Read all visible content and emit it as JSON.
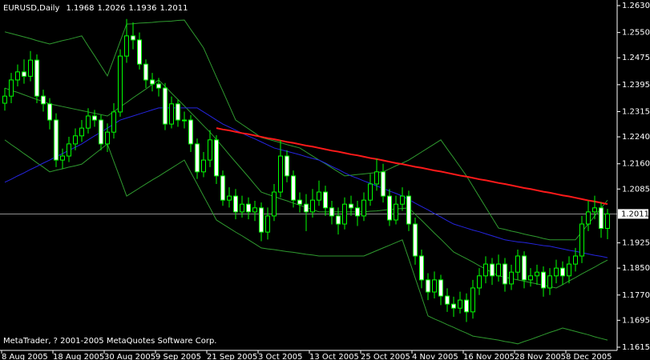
{
  "chart_data": {
    "type": "candlestick",
    "title": "EURUSD,Daily",
    "annotation": "MetaTrader, ? 2001-2005 MetaQuotes Software Corp.",
    "categories": [
      "8 Aug 2005",
      null,
      null,
      null,
      null,
      null,
      null,
      null,
      "18 Aug 2005",
      null,
      null,
      null,
      null,
      null,
      null,
      null,
      "30 Aug 2005",
      null,
      null,
      null,
      null,
      null,
      null,
      null,
      "9 Sep 2005",
      null,
      null,
      null,
      null,
      null,
      null,
      null,
      "21 Sep 2005",
      null,
      null,
      null,
      null,
      null,
      null,
      null,
      "3 Oct 2005",
      null,
      null,
      null,
      null,
      null,
      null,
      null,
      "13 Oct 2005",
      null,
      null,
      null,
      null,
      null,
      null,
      null,
      "25 Oct 2005",
      null,
      null,
      null,
      null,
      null,
      null,
      null,
      "4 Nov 2005",
      null,
      null,
      null,
      null,
      null,
      null,
      null,
      "16 Nov 2005",
      null,
      null,
      null,
      null,
      null,
      null,
      null,
      "28 Nov 2005",
      null,
      null,
      null,
      null,
      null,
      null,
      null,
      "8 Dec 2005",
      null,
      null,
      null,
      null,
      null,
      null
    ],
    "candles": {
      "open": [
        1.234,
        1.2361,
        1.2409,
        1.2433,
        1.242,
        1.2468,
        1.2361,
        1.2338,
        1.229,
        1.2171,
        1.2183,
        1.2219,
        1.2243,
        1.2266,
        1.2302,
        1.229,
        1.2219,
        1.2254,
        1.2314,
        1.248,
        1.254,
        1.2528,
        1.2456,
        1.2409,
        1.2397,
        1.2385,
        1.2278,
        1.2338,
        1.229,
        1.229,
        1.2219,
        1.2136,
        1.2171,
        1.2231,
        1.2124,
        1.2052,
        1.2064,
        1.2017,
        1.204,
        1.2017,
        1.2029,
        1.1957,
        1.2005,
        1.2076,
        1.2183,
        1.2124,
        1.2052,
        1.204,
        1.2017,
        1.2052,
        1.2076,
        1.2029,
        1.2005,
        1.1981,
        1.204,
        1.2029,
        1.2005,
        1.2052,
        1.21,
        1.2136,
        1.2064,
        1.1993,
        1.204,
        1.2064,
        1.1981,
        1.1886,
        1.1815,
        1.1779,
        1.1815,
        1.1767,
        1.1743,
        1.1731,
        1.1755,
        1.172,
        1.1791,
        1.1827,
        1.1862,
        1.1827,
        1.1862,
        1.1803,
        1.1838,
        1.1886,
        1.1815,
        1.1827,
        1.1838,
        1.1791,
        1.1827,
        1.185,
        1.1827,
        1.1862,
        1.1886,
        1.1981,
        1.2017,
        1.2029,
        1.1968
      ],
      "high": [
        1.2385,
        1.243,
        1.2455,
        1.247,
        1.2495,
        1.2485,
        1.238,
        1.2355,
        1.231,
        1.2205,
        1.224,
        1.2265,
        1.229,
        1.2325,
        1.232,
        1.2305,
        1.228,
        1.234,
        1.25,
        1.259,
        1.258,
        1.255,
        1.247,
        1.243,
        1.2415,
        1.24,
        1.236,
        1.235,
        1.2315,
        1.2305,
        1.2235,
        1.2195,
        1.226,
        1.2245,
        1.214,
        1.209,
        1.2085,
        1.2065,
        1.206,
        1.205,
        1.2045,
        1.203,
        1.21,
        1.223,
        1.22,
        1.214,
        1.2075,
        1.207,
        1.2085,
        1.211,
        1.2095,
        1.205,
        1.203,
        1.206,
        1.2065,
        1.205,
        1.2075,
        1.213,
        1.2175,
        1.216,
        1.2085,
        1.2065,
        1.209,
        1.208,
        1.2,
        1.1905,
        1.1835,
        1.184,
        1.183,
        1.179,
        1.1765,
        1.178,
        1.1775,
        1.1815,
        1.185,
        1.1885,
        1.188,
        1.189,
        1.188,
        1.186,
        1.1905,
        1.19,
        1.185,
        1.186,
        1.1855,
        1.185,
        1.1875,
        1.187,
        1.1885,
        1.191,
        1.2005,
        1.205,
        1.2065,
        1.2045,
        1.2026
      ],
      "low": [
        1.2318,
        1.234,
        1.239,
        1.2398,
        1.2405,
        1.234,
        1.2315,
        1.2262,
        1.215,
        1.2145,
        1.2165,
        1.22,
        1.2225,
        1.225,
        1.227,
        1.22,
        1.2195,
        1.2235,
        1.23,
        1.246,
        1.25,
        1.244,
        1.2385,
        1.2375,
        1.236,
        1.226,
        1.2265,
        1.227,
        1.2265,
        1.2195,
        1.2115,
        1.212,
        1.215,
        1.21,
        1.2035,
        1.203,
        1.1995,
        1.2,
        1.1995,
        1.199,
        1.193,
        1.1935,
        1.199,
        1.206,
        1.2105,
        1.203,
        1.2015,
        1.196,
        1.2,
        1.2035,
        1.2005,
        1.198,
        1.195,
        1.1965,
        1.2005,
        1.1975,
        1.199,
        1.2035,
        1.208,
        1.2045,
        1.1975,
        1.198,
        1.202,
        1.196,
        1.186,
        1.179,
        1.1755,
        1.176,
        1.174,
        1.172,
        1.1705,
        1.1715,
        1.169,
        1.17,
        1.177,
        1.1805,
        1.18,
        1.181,
        1.178,
        1.1785,
        1.1815,
        1.179,
        1.1795,
        1.18,
        1.1765,
        1.177,
        1.1805,
        1.18,
        1.1805,
        1.184,
        1.1865,
        1.196,
        1.1995,
        1.194,
        1.1936
      ],
      "close": [
        1.2361,
        1.2409,
        1.2433,
        1.242,
        1.2468,
        1.2361,
        1.2338,
        1.229,
        1.2171,
        1.2183,
        1.2219,
        1.2243,
        1.2266,
        1.2302,
        1.229,
        1.2219,
        1.2254,
        1.2314,
        1.248,
        1.254,
        1.2528,
        1.2456,
        1.2409,
        1.2397,
        1.2385,
        1.2278,
        1.2338,
        1.229,
        1.229,
        1.2219,
        1.2136,
        1.2171,
        1.2231,
        1.2124,
        1.2052,
        1.2064,
        1.2017,
        1.204,
        1.2017,
        1.2029,
        1.1957,
        1.2005,
        1.2076,
        1.2183,
        1.2124,
        1.2052,
        1.204,
        1.2017,
        1.2052,
        1.2076,
        1.2029,
        1.2005,
        1.1981,
        1.204,
        1.2029,
        1.2005,
        1.2052,
        1.21,
        1.2136,
        1.2064,
        1.1993,
        1.204,
        1.2064,
        1.1981,
        1.1886,
        1.1815,
        1.1779,
        1.1815,
        1.1767,
        1.1743,
        1.1731,
        1.1755,
        1.172,
        1.1791,
        1.1827,
        1.1862,
        1.1827,
        1.1862,
        1.1803,
        1.1838,
        1.1886,
        1.1815,
        1.1827,
        1.1838,
        1.1791,
        1.1827,
        1.185,
        1.1827,
        1.1862,
        1.1886,
        1.1981,
        1.2017,
        1.2029,
        1.1968,
        1.2011
      ],
      "wick_color": "#00ff00",
      "bull_fill": "#000000",
      "bear_fill": "#ffffff"
    },
    "lines": [
      {
        "color": "#2f9a2f",
        "width": 1,
        "values": [
          1.2552,
          1.2547,
          1.2542,
          1.2537,
          1.2532,
          1.2526,
          1.2521,
          1.2516,
          1.2521,
          1.2526,
          1.253,
          1.2535,
          1.254,
          1.251,
          1.2481,
          1.2451,
          1.2421,
          1.2472,
          1.2524,
          1.2575,
          1.2576,
          1.2578,
          1.2579,
          1.258,
          1.2582,
          1.2583,
          1.2584,
          1.2586,
          1.2587,
          1.2559,
          1.2532,
          1.2504,
          1.2461,
          1.2418,
          1.2376,
          1.2333,
          1.229,
          1.2277,
          1.2264,
          1.2251,
          1.2238,
          1.2233,
          1.2228,
          1.2223,
          1.2217,
          1.2212,
          1.2207,
          1.2195,
          1.2183,
          1.2171,
          1.216,
          1.2148,
          1.2136,
          1.2124,
          1.2126,
          1.2128,
          1.213,
          1.2132,
          1.2134,
          1.2136,
          1.2145,
          1.2154,
          1.2162,
          1.2171,
          1.2183,
          1.2195,
          1.2207,
          1.2219,
          1.2231,
          1.2204,
          1.2178,
          1.2151,
          1.2124,
          1.2093,
          1.2062,
          1.2031,
          1.2,
          1.1969,
          1.1965,
          1.196,
          1.1956,
          1.1951,
          1.1947,
          1.1943,
          1.1938,
          1.1934,
          1.1934,
          1.1934,
          1.1934,
          1.1934,
          1.1958,
          1.1981,
          1.2005,
          1.2028,
          1.2052
        ]
      },
      {
        "color": "#2f9a2f",
        "width": 1,
        "values": [
          1.2385,
          1.2378,
          1.2372,
          1.2365,
          1.2358,
          1.2351,
          1.2345,
          1.2338,
          1.2334,
          1.233,
          1.2326,
          1.2322,
          1.2318,
          1.2314,
          1.231,
          1.2306,
          1.2302,
          1.2315,
          1.2329,
          1.2342,
          1.2356,
          1.2369,
          1.2382,
          1.2396,
          1.2409,
          1.239,
          1.237,
          1.2351,
          1.2332,
          1.2312,
          1.2293,
          1.2273,
          1.2254,
          1.2232,
          1.221,
          1.2187,
          1.2165,
          1.2143,
          1.2121,
          1.2098,
          1.2076,
          1.2069,
          1.2063,
          1.2056,
          1.205,
          1.2043,
          1.2037,
          1.203,
          1.2024,
          1.2017,
          1.2017,
          1.2017,
          1.2017,
          1.2017,
          1.2017,
          1.2017,
          1.2017,
          1.2019,
          1.202,
          1.2022,
          1.2024,
          1.2026,
          1.2027,
          1.2029,
          1.201,
          1.1992,
          1.1973,
          1.1954,
          1.1936,
          1.1917,
          1.1898,
          1.1888,
          1.1878,
          1.1868,
          1.1857,
          1.1847,
          1.1837,
          1.1827,
          1.1823,
          1.1819,
          1.1815,
          1.1811,
          1.1807,
          1.1803,
          1.1799,
          1.1795,
          1.1791,
          1.1801,
          1.1812,
          1.1822,
          1.1833,
          1.1843,
          1.1853,
          1.1864,
          1.1874
        ]
      },
      {
        "color": "#2f9a2f",
        "width": 1,
        "values": [
          1.2231,
          1.2217,
          1.2204,
          1.219,
          1.2177,
          1.2163,
          1.215,
          1.2136,
          1.2141,
          1.2145,
          1.215,
          1.2154,
          1.2159,
          1.2174,
          1.2189,
          1.2204,
          1.2219,
          1.2167,
          1.2116,
          1.2064,
          1.2076,
          1.2088,
          1.21,
          1.2112,
          1.2123,
          1.2135,
          1.2147,
          1.2159,
          1.2171,
          1.2135,
          1.21,
          1.2064,
          1.2029,
          1.1993,
          1.1981,
          1.1969,
          1.1957,
          1.1946,
          1.1934,
          1.1922,
          1.191,
          1.1907,
          1.1905,
          1.1902,
          1.1899,
          1.1897,
          1.1894,
          1.1891,
          1.1889,
          1.1886,
          1.1886,
          1.1886,
          1.1886,
          1.1886,
          1.1886,
          1.1886,
          1.1886,
          1.1894,
          1.1902,
          1.191,
          1.1918,
          1.1926,
          1.1934,
          1.1878,
          1.1821,
          1.1765,
          1.1708,
          1.1699,
          1.1691,
          1.1682,
          1.1674,
          1.1665,
          1.1657,
          1.1648,
          1.1645,
          1.1642,
          1.1639,
          1.1636,
          1.1632,
          1.1629,
          1.1625,
          1.1632,
          1.1638,
          1.1645,
          1.1652,
          1.1659,
          1.1665,
          1.1672,
          1.1667,
          1.1662,
          1.1657,
          1.1652,
          1.1646,
          1.1641,
          1.1636
        ]
      },
      {
        "color": "#2525e0",
        "width": 1,
        "values": [
          1.2105,
          1.2114,
          1.2124,
          1.2133,
          1.2143,
          1.2152,
          1.2162,
          1.2171,
          1.2181,
          1.219,
          1.22,
          1.2209,
          1.2219,
          1.2231,
          1.2243,
          1.2254,
          1.2266,
          1.2278,
          1.229,
          1.2296,
          1.2302,
          1.2308,
          1.2314,
          1.232,
          1.2326,
          1.2326,
          1.2326,
          1.2326,
          1.2326,
          1.2326,
          1.2326,
          1.2314,
          1.2302,
          1.229,
          1.2278,
          1.2269,
          1.226,
          1.2251,
          1.2242,
          1.2234,
          1.2225,
          1.2216,
          1.2207,
          1.2202,
          1.2197,
          1.2192,
          1.2187,
          1.2181,
          1.2176,
          1.2171,
          1.2162,
          1.2152,
          1.2143,
          1.2133,
          1.2124,
          1.2117,
          1.2109,
          1.2102,
          1.2094,
          1.2087,
          1.2079,
          1.2072,
          1.2064,
          1.2054,
          1.2043,
          1.2033,
          1.2023,
          1.2012,
          1.2002,
          1.1991,
          1.1981,
          1.1975,
          1.1969,
          1.1963,
          1.1958,
          1.1952,
          1.1946,
          1.194,
          1.1934,
          1.1931,
          1.1928,
          1.1926,
          1.1923,
          1.192,
          1.1917,
          1.1915,
          1.1911,
          1.1907,
          1.1903,
          1.19,
          1.1896,
          1.1892,
          1.1888,
          1.1885,
          1.1881
        ]
      },
      {
        "color": "#ff1a1a",
        "width": 2,
        "values": [
          null,
          null,
          null,
          null,
          null,
          null,
          null,
          null,
          null,
          null,
          null,
          null,
          null,
          null,
          null,
          null,
          null,
          null,
          null,
          null,
          null,
          null,
          null,
          null,
          null,
          null,
          null,
          null,
          null,
          null,
          null,
          null,
          null,
          1.2266,
          1.2262,
          1.2259,
          1.2255,
          1.2251,
          1.2248,
          1.2244,
          1.224,
          1.2236,
          1.2233,
          1.2229,
          1.2225,
          1.2222,
          1.2218,
          1.2214,
          1.2211,
          1.2207,
          1.2203,
          1.2199,
          1.2196,
          1.2192,
          1.2188,
          1.2185,
          1.2181,
          1.2177,
          1.2174,
          1.217,
          1.2166,
          1.2162,
          1.2159,
          1.2155,
          1.2151,
          1.2148,
          1.2144,
          1.214,
          1.2137,
          1.2133,
          1.2129,
          1.2125,
          1.2122,
          1.2118,
          1.2114,
          1.2111,
          1.2107,
          1.2103,
          1.21,
          1.2096,
          1.2092,
          1.2088,
          1.2085,
          1.2081,
          1.2077,
          1.2074,
          1.207,
          1.2066,
          1.2063,
          1.2059,
          1.2055,
          1.2051,
          1.2048,
          1.2044,
          1.204
        ]
      }
    ],
    "ylim": [
      1.16055,
      1.26466
    ],
    "yticks": [
      {
        "value": 1.263,
        "label": "1.2630"
      },
      {
        "value": 1.255,
        "label": "1.2550"
      },
      1.2475,
      1.2395,
      1.2315,
      {
        "value": 1.224,
        "label": "1.2240"
      },
      {
        "value": 1.216,
        "label": "1.2160"
      },
      1.2085,
      1.1925,
      {
        "value": 1.185,
        "label": "1.1850"
      },
      {
        "value": 1.177,
        "label": "1.1770"
      },
      1.1695,
      1.1615
    ],
    "current_price_color": "#c0c0c0"
  }
}
